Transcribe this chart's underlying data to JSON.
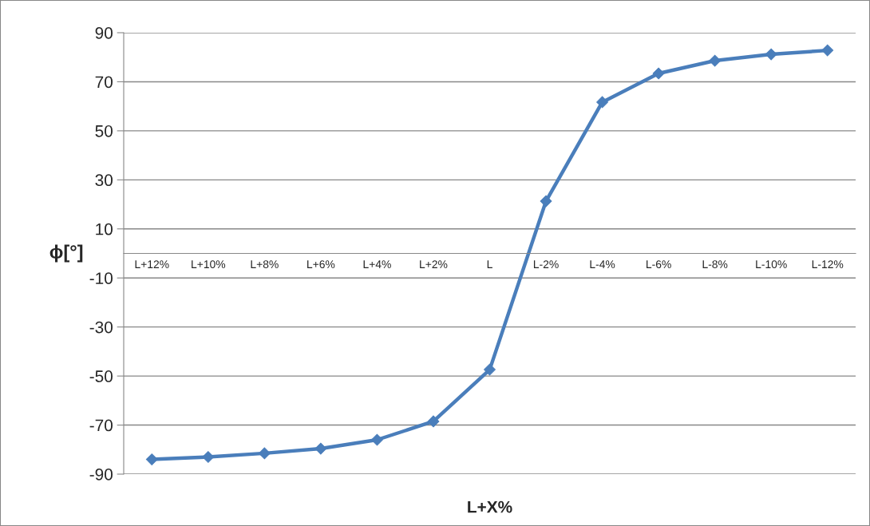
{
  "chart_data": {
    "type": "line",
    "xlabel": "L+X%",
    "ylabel": "ϕ[°]",
    "categories": [
      "L+12%",
      "L+10%",
      "L+8%",
      "L+6%",
      "L+4%",
      "L+2%",
      "L",
      "L-2%",
      "L-4%",
      "L-6%",
      "L-8%",
      "L-10%",
      "L-12%"
    ],
    "series": [
      {
        "color": "#4a7ebb",
        "values": [
          -84,
          -83,
          -81.5,
          -79.6,
          -76,
          -68.5,
          -47.4,
          21.3,
          61.7,
          73.4,
          78.6,
          81.2,
          82.8
        ]
      }
    ],
    "ylim": [
      -90,
      90
    ],
    "yticks": [
      -90,
      -70,
      -50,
      -30,
      -10,
      10,
      30,
      50,
      70,
      90
    ],
    "grid": "y",
    "marker": "diamond",
    "line_style": "solid"
  }
}
